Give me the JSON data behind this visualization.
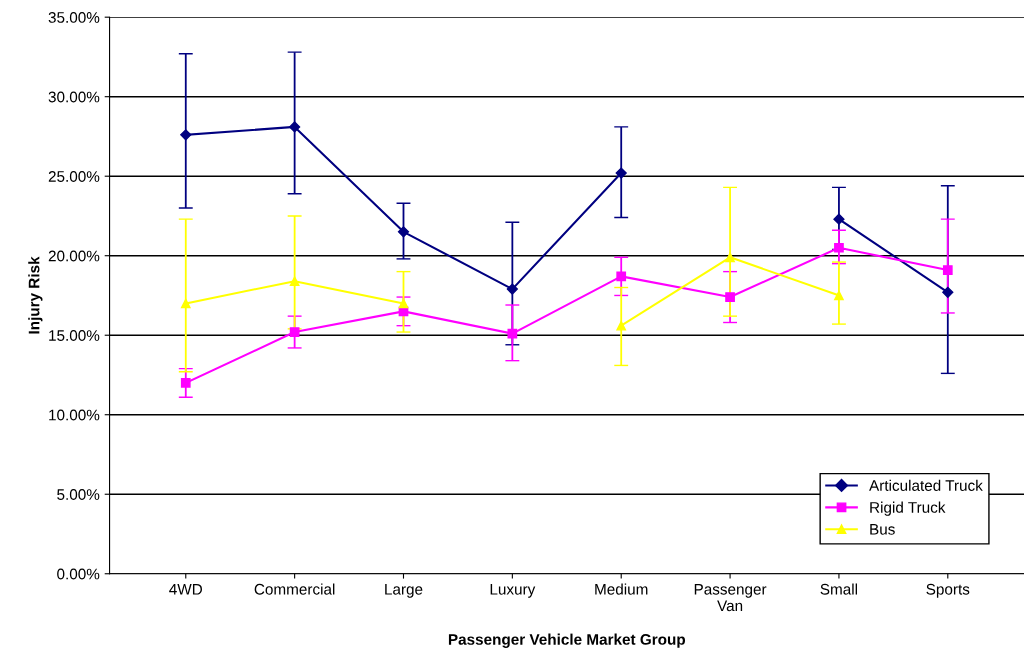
{
  "chart_data": {
    "type": "line",
    "xlabel": "Passenger Vehicle Market Group",
    "ylabel": "Injury Risk",
    "categories": [
      "4WD",
      "Commercial",
      "Large",
      "Luxury",
      "Medium",
      "Passenger\nVan",
      "Small",
      "Sports"
    ],
    "series": [
      {
        "name": "Articulated Truck",
        "color": "#000080",
        "marker": "diamond",
        "values": [
          27.6,
          28.1,
          21.5,
          17.9,
          25.2,
          null,
          22.3,
          17.7
        ],
        "errors": [
          [
            23.0,
            32.7
          ],
          [
            23.9,
            32.8
          ],
          [
            19.8,
            23.3
          ],
          [
            14.4,
            22.1
          ],
          [
            22.4,
            28.1
          ],
          null,
          [
            20.4,
            24.3
          ],
          [
            12.6,
            24.4
          ]
        ]
      },
      {
        "name": "Rigid Truck",
        "color": "#ff00ff",
        "marker": "square",
        "values": [
          12.0,
          15.2,
          16.5,
          15.1,
          18.7,
          17.4,
          20.5,
          19.1
        ],
        "errors": [
          [
            11.1,
            12.9
          ],
          [
            14.2,
            16.2
          ],
          [
            15.6,
            17.4
          ],
          [
            13.4,
            16.9
          ],
          [
            17.5,
            19.9
          ],
          [
            15.8,
            19.0
          ],
          [
            19.5,
            21.6
          ],
          [
            16.4,
            22.3
          ]
        ]
      },
      {
        "name": "Bus",
        "color": "#ffff00",
        "marker": "triangle",
        "values": [
          17.0,
          18.4,
          17.0,
          null,
          15.6,
          19.9,
          17.5,
          null
        ],
        "errors": [
          [
            12.7,
            22.3
          ],
          [
            15.4,
            22.5
          ],
          [
            15.2,
            19.0
          ],
          null,
          [
            13.1,
            18.0
          ],
          [
            16.2,
            24.3
          ],
          [
            15.7,
            19.6
          ],
          null
        ]
      }
    ],
    "ylim": [
      0,
      35
    ],
    "yticks": [
      {
        "value": 0,
        "label": "0.00%"
      },
      {
        "value": 5,
        "label": "5.00%"
      },
      {
        "value": 10,
        "label": "10.00%"
      },
      {
        "value": 15,
        "label": "15.00%"
      },
      {
        "value": 20,
        "label": "20.00%"
      },
      {
        "value": 25,
        "label": "25.00%"
      },
      {
        "value": 30,
        "label": "30.00%"
      },
      {
        "value": 35,
        "label": "35.00%"
      }
    ],
    "grid": "y",
    "legend": "bottom right",
    "line_style": "solid"
  }
}
